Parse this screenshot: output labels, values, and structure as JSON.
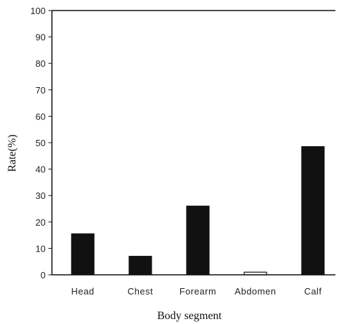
{
  "chart_data": {
    "type": "bar",
    "categories": [
      "Head",
      "Chest",
      "Forearm",
      "Abdomen",
      "Calf"
    ],
    "values": [
      15.5,
      7,
      26,
      1,
      48.5
    ],
    "xlabel": "Body segment",
    "ylabel": "Rate(%)",
    "ylim": [
      0,
      100
    ],
    "yticks": [
      "0",
      "10",
      "20",
      "30",
      "40",
      "50",
      "60",
      "70",
      "80",
      "90",
      "100"
    ],
    "bar_colors": [
      "#111111",
      "#111111",
      "#111111",
      "#ffffff",
      "#111111"
    ],
    "grid": false
  }
}
